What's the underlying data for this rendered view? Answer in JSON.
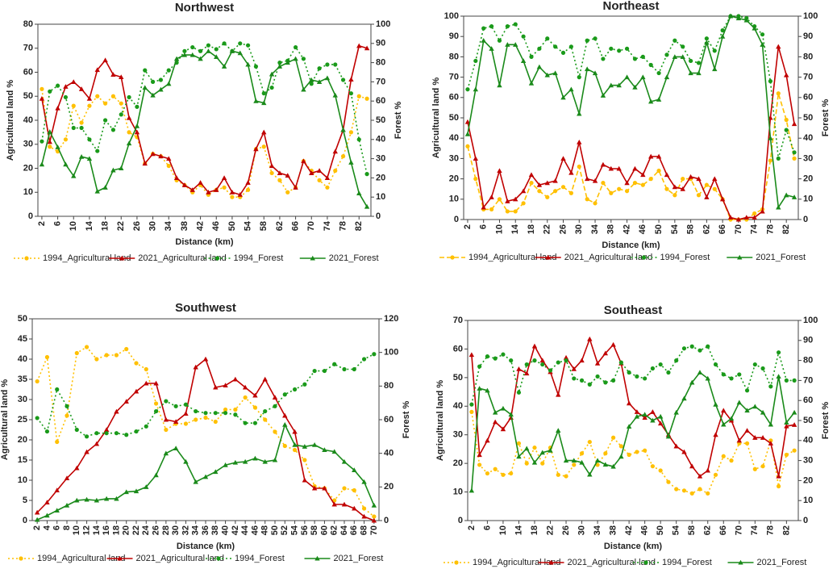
{
  "chart_data": [
    {
      "type": "line",
      "title": "Northwest",
      "xlabel": "Distance (km)",
      "ylabel": "Agricultural land %",
      "y2label": "Forest %",
      "x": [
        2,
        4,
        6,
        8,
        10,
        12,
        14,
        16,
        18,
        20,
        22,
        24,
        26,
        28,
        30,
        32,
        34,
        36,
        38,
        40,
        42,
        44,
        46,
        48,
        50,
        52,
        54,
        56,
        58,
        60,
        62,
        64,
        66,
        68,
        70,
        72,
        74,
        76,
        78,
        80,
        82,
        84
      ],
      "xlim": [
        1,
        85
      ],
      "xticks": [
        2,
        6,
        10,
        14,
        18,
        22,
        26,
        30,
        34,
        38,
        42,
        46,
        50,
        54,
        58,
        62,
        66,
        70,
        74,
        78,
        82
      ],
      "ylim": [
        0,
        80
      ],
      "yticks": [
        0,
        10,
        20,
        30,
        40,
        50,
        60,
        70,
        80
      ],
      "y2lim": [
        0,
        100
      ],
      "y2ticks": [
        0,
        10,
        20,
        30,
        40,
        50,
        60,
        70,
        80,
        90,
        100
      ],
      "series": [
        {
          "name": "1994_Agricultural land",
          "color": "#ffc000",
          "style": "dotted",
          "marker": "circle",
          "values": [
            53,
            29,
            27,
            32,
            46,
            39,
            46,
            50,
            47,
            50,
            47,
            35,
            33,
            22,
            26,
            25,
            21,
            15,
            13,
            10,
            13,
            9,
            11,
            12,
            8,
            8,
            11,
            28,
            29,
            18,
            15,
            10,
            12,
            23,
            19,
            15,
            12,
            19,
            25,
            35,
            50,
            49
          ]
        },
        {
          "name": "2021_Agricultural land",
          "color": "#c00000",
          "style": "solid",
          "marker": "triangle",
          "values": [
            49,
            31,
            45,
            54,
            56,
            53,
            49,
            61,
            65,
            59,
            58,
            41,
            35,
            22,
            26,
            25,
            24,
            16,
            13,
            11,
            14,
            10,
            11,
            16,
            10,
            9,
            14,
            28,
            35,
            21,
            18,
            17,
            12,
            23,
            18,
            19,
            16,
            27,
            36,
            57,
            71,
            70
          ]
        },
        {
          "name": "1994_Forest",
          "color": "#1a9a1a",
          "style": "dotted",
          "marker": "circle",
          "axis": "y2",
          "values": [
            39,
            65,
            68,
            62,
            46,
            46,
            40,
            34,
            50,
            45,
            53,
            62,
            57,
            76,
            70,
            71,
            76,
            80,
            86,
            88,
            86,
            89,
            87,
            90,
            86,
            90,
            89,
            78,
            64,
            67,
            80,
            81,
            88,
            82,
            69,
            77,
            79,
            79,
            71,
            64,
            40,
            22
          ]
        },
        {
          "name": "2021_Forest",
          "color": "#1a8a1a",
          "style": "solid",
          "marker": "triangle",
          "axis": "y2",
          "values": [
            27,
            44,
            36,
            27,
            21,
            31,
            30,
            13,
            15,
            24,
            25,
            38,
            47,
            67,
            63,
            66,
            69,
            82,
            84,
            84,
            82,
            86,
            83,
            78,
            86,
            85,
            79,
            60,
            59,
            74,
            78,
            80,
            82,
            66,
            71,
            70,
            72,
            63,
            45,
            28,
            12,
            5
          ]
        }
      ]
    },
    {
      "type": "line",
      "title": "Northeast",
      "xlabel": "Distance (km)",
      "ylabel": "Agricultural land %",
      "y2label": "Forest %",
      "x": [
        2,
        4,
        6,
        8,
        10,
        12,
        14,
        16,
        18,
        20,
        22,
        24,
        26,
        28,
        30,
        32,
        34,
        36,
        38,
        40,
        42,
        44,
        46,
        48,
        50,
        52,
        54,
        56,
        58,
        60,
        62,
        64,
        66,
        68,
        70,
        72,
        74,
        76,
        78,
        80,
        82,
        84
      ],
      "xlim": [
        1,
        85
      ],
      "xticks": [
        2,
        6,
        10,
        14,
        18,
        22,
        26,
        30,
        34,
        38,
        42,
        46,
        50,
        54,
        58,
        62,
        66,
        70,
        74,
        78,
        82
      ],
      "ylim": [
        0,
        100
      ],
      "yticks": [
        0,
        10,
        20,
        30,
        40,
        50,
        60,
        70,
        80,
        90,
        100
      ],
      "y2lim": [
        0,
        100
      ],
      "y2ticks": [
        0,
        10,
        20,
        30,
        40,
        50,
        60,
        70,
        80,
        90,
        100
      ],
      "series": [
        {
          "name": "1994_Agricultural land",
          "color": "#ffc000",
          "style": "dashed",
          "marker": "circle",
          "values": [
            36,
            20,
            5,
            5,
            10,
            4,
            4,
            8,
            18,
            14,
            11,
            14,
            16,
            13,
            26,
            10,
            8,
            18,
            13,
            15,
            14,
            18,
            17,
            20,
            24,
            15,
            12,
            20,
            20,
            12,
            17,
            15,
            10,
            0,
            0,
            0,
            3,
            5,
            29,
            62,
            49,
            30
          ]
        },
        {
          "name": "2021_Agricultural land",
          "color": "#c00000",
          "style": "solid",
          "marker": "triangle",
          "values": [
            48,
            30,
            6,
            11,
            24,
            9,
            10,
            14,
            22,
            17,
            18,
            19,
            30,
            23,
            38,
            20,
            19,
            27,
            25,
            25,
            18,
            25,
            22,
            31,
            31,
            22,
            16,
            15,
            21,
            20,
            11,
            20,
            10,
            1,
            0,
            1,
            1,
            4,
            50,
            85,
            71,
            47
          ]
        },
        {
          "name": "1994_Forest",
          "color": "#1a9a1a",
          "style": "dotted",
          "marker": "circle",
          "axis": "y2",
          "values": [
            64,
            78,
            94,
            95,
            88,
            95,
            96,
            90,
            80,
            84,
            89,
            85,
            82,
            85,
            70,
            88,
            89,
            79,
            84,
            83,
            84,
            79,
            80,
            76,
            72,
            81,
            88,
            85,
            78,
            77,
            89,
            83,
            93,
            100,
            100,
            99,
            95,
            91,
            68,
            30,
            44,
            33
          ]
        },
        {
          "name": "2021_Forest",
          "color": "#1a8a1a",
          "style": "solid",
          "marker": "triangle",
          "axis": "y2",
          "values": [
            42,
            64,
            88,
            84,
            66,
            86,
            86,
            78,
            67,
            75,
            71,
            72,
            60,
            64,
            52,
            74,
            72,
            61,
            66,
            66,
            70,
            65,
            70,
            58,
            59,
            70,
            80,
            80,
            72,
            72,
            87,
            74,
            90,
            100,
            99,
            98,
            94,
            86,
            40,
            6,
            12,
            11
          ]
        }
      ]
    },
    {
      "type": "line",
      "title": "Southwest",
      "xlabel": "Distance (km)",
      "ylabel": "Agricultural land %",
      "y2label": "Forest %",
      "x": [
        2,
        4,
        6,
        8,
        10,
        12,
        14,
        16,
        18,
        20,
        22,
        24,
        26,
        28,
        30,
        32,
        34,
        36,
        38,
        40,
        42,
        44,
        46,
        48,
        50,
        52,
        54,
        56,
        58,
        60,
        62,
        64,
        66,
        68,
        70
      ],
      "xlim": [
        1,
        71
      ],
      "xticks": [
        2,
        4,
        6,
        8,
        10,
        12,
        14,
        16,
        18,
        20,
        22,
        24,
        26,
        28,
        30,
        32,
        34,
        36,
        38,
        40,
        42,
        44,
        46,
        48,
        50,
        52,
        54,
        56,
        58,
        60,
        62,
        64,
        66,
        68,
        70
      ],
      "ylim": [
        0,
        50
      ],
      "yticks": [
        0,
        5,
        10,
        15,
        20,
        25,
        30,
        35,
        40,
        45,
        50
      ],
      "y2lim": [
        0,
        120
      ],
      "y2ticks": [
        0,
        20,
        40,
        60,
        80,
        100,
        120
      ],
      "series": [
        {
          "name": "1994_Agricultural land",
          "color": "#ffc000",
          "style": "dotted",
          "marker": "circle",
          "values": [
            34.5,
            40.5,
            19.5,
            26,
            41.5,
            43,
            40,
            41,
            41,
            42.5,
            39,
            37.5,
            29,
            22.5,
            24,
            24,
            25,
            25.5,
            24.5,
            27.5,
            27.5,
            30.5,
            28,
            25,
            22,
            18.5,
            17.5,
            15,
            8.5,
            8,
            5,
            8,
            7.5,
            3,
            1
          ]
        },
        {
          "name": "2021_Agricultural land",
          "color": "#c00000",
          "style": "solid",
          "marker": "triangle",
          "values": [
            2,
            4.5,
            7.5,
            10.5,
            13,
            17,
            19,
            22.5,
            27,
            29.5,
            32,
            34,
            34,
            25,
            24.5,
            26.5,
            38,
            40,
            33,
            33.5,
            35,
            33,
            31,
            35,
            30.5,
            26,
            22,
            10,
            8,
            8,
            4,
            4,
            3,
            1,
            0
          ]
        },
        {
          "name": "1994_Forest",
          "color": "#1a9a1a",
          "style": "dotted",
          "marker": "circle",
          "axis": "y2",
          "values": [
            61,
            53,
            78,
            68,
            54,
            50,
            52,
            52,
            52,
            51,
            53,
            56,
            65,
            71,
            68,
            69,
            65,
            64,
            64,
            64,
            63,
            58,
            58,
            65,
            68,
            75,
            78,
            81,
            89,
            89,
            93,
            90,
            90,
            96,
            99
          ]
        },
        {
          "name": "2021_Forest",
          "color": "#1a8a1a",
          "style": "solid",
          "marker": "triangle",
          "axis": "y2",
          "values": [
            0.5,
            3,
            6,
            9,
            12,
            12.5,
            12,
            13,
            13,
            17,
            17.5,
            20,
            27,
            40,
            43,
            35,
            23,
            26,
            29,
            33,
            34.5,
            35,
            37,
            35,
            36,
            57,
            45,
            44,
            45,
            42,
            41,
            35,
            30,
            23,
            9
          ]
        }
      ]
    },
    {
      "type": "line",
      "title": "Southeast",
      "xlabel": "Distance (km)",
      "ylabel": "Agricultural land %",
      "y2label": "Forest %",
      "x": [
        2,
        4,
        6,
        8,
        10,
        12,
        14,
        16,
        18,
        20,
        22,
        24,
        26,
        28,
        30,
        32,
        34,
        36,
        38,
        40,
        42,
        44,
        46,
        48,
        50,
        52,
        54,
        56,
        58,
        60,
        62,
        64,
        66,
        68,
        70,
        72,
        74,
        76,
        78,
        80,
        82,
        84
      ],
      "xlim": [
        1,
        85
      ],
      "xticks": [
        2,
        6,
        10,
        14,
        18,
        22,
        26,
        30,
        34,
        38,
        42,
        46,
        50,
        54,
        58,
        62,
        66,
        70,
        74,
        78,
        82
      ],
      "ylim": [
        0,
        70
      ],
      "yticks": [
        0,
        10,
        20,
        30,
        40,
        50,
        60,
        70
      ],
      "y2lim": [
        0,
        100
      ],
      "y2ticks": [
        0,
        10,
        20,
        30,
        40,
        50,
        60,
        70,
        80,
        90,
        100
      ],
      "series": [
        {
          "name": "1994_Agricultural land",
          "color": "#ffc000",
          "style": "dotted",
          "marker": "circle",
          "values": [
            38,
            19.5,
            16.5,
            18,
            16,
            16.5,
            27,
            20,
            25.5,
            20,
            25.5,
            16,
            15.5,
            19.5,
            23.5,
            27.5,
            19.5,
            23.5,
            29,
            26,
            23,
            24,
            24.5,
            19,
            17.5,
            13.5,
            11,
            10.5,
            9.5,
            11,
            9.5,
            16,
            22.5,
            21,
            27,
            27,
            18,
            19,
            28,
            12,
            23,
            24.5
          ]
        },
        {
          "name": "2021_Agricultural land",
          "color": "#c00000",
          "style": "solid",
          "marker": "triangle",
          "values": [
            58,
            23,
            28,
            34.5,
            32,
            36,
            53,
            51.5,
            61,
            56,
            52,
            44,
            57,
            53,
            56,
            63.5,
            55,
            58.5,
            61.5,
            55,
            41,
            38,
            36,
            38,
            34,
            30,
            26,
            24,
            19,
            15.5,
            17.5,
            30,
            38.5,
            35,
            28,
            31.5,
            29,
            29,
            27,
            15.5,
            33,
            33.5
          ]
        },
        {
          "name": "1994_Forest",
          "color": "#1a9a1a",
          "style": "dotted",
          "marker": "circle",
          "axis": "y2",
          "values": [
            58,
            77,
            82,
            81,
            83,
            80,
            64,
            78,
            80,
            78,
            75,
            79,
            80,
            71,
            70,
            68,
            72,
            69,
            70,
            79,
            74,
            72,
            71,
            76,
            78,
            74,
            80,
            86,
            87,
            85,
            87,
            78,
            73,
            71,
            73,
            65,
            78,
            76,
            67,
            84,
            70,
            70
          ]
        },
        {
          "name": "2021_Forest",
          "color": "#1a8a1a",
          "style": "solid",
          "marker": "triangle",
          "axis": "y2",
          "values": [
            15,
            66,
            65,
            54,
            56,
            53,
            32,
            36,
            29,
            34,
            35,
            45,
            30,
            30,
            29,
            23,
            30,
            28,
            27,
            32,
            47,
            52,
            53,
            50,
            52,
            42,
            54,
            61,
            69,
            74,
            71,
            58,
            48,
            51,
            59,
            55,
            57,
            54,
            48,
            72,
            49,
            54
          ]
        }
      ]
    }
  ]
}
